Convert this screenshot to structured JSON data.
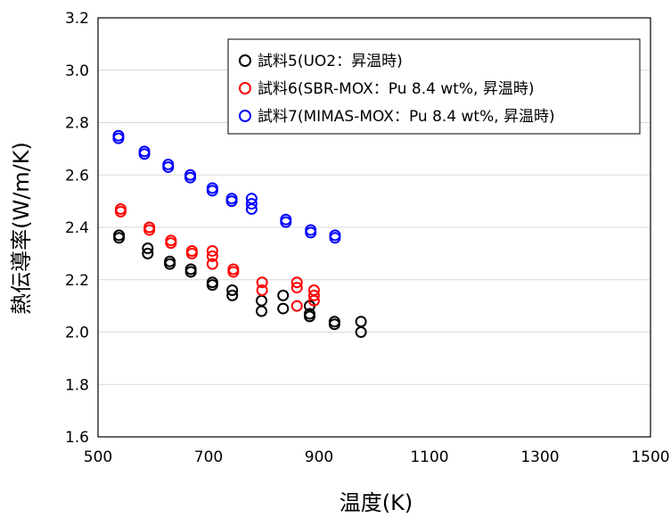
{
  "chart_data": {
    "type": "scatter",
    "xlabel": "温度(K)",
    "ylabel": "熱伝導率(W/m/K)",
    "xlim": [
      500,
      1500
    ],
    "ylim": [
      1.6,
      3.2
    ],
    "xticks": [
      "500",
      "700",
      "900",
      "1100",
      "1300",
      "1500"
    ],
    "yticks": [
      "1.6",
      "1.8",
      "2.0",
      "2.2",
      "2.4",
      "2.6",
      "2.8",
      "3.0",
      "3.2"
    ],
    "grid": "horizontal",
    "legend_position": "top-right",
    "series": [
      {
        "name": "試料5(UO2：昇温時)",
        "color": "#000000",
        "points": [
          [
            538,
            2.37
          ],
          [
            538,
            2.36
          ],
          [
            590,
            2.32
          ],
          [
            590,
            2.3
          ],
          [
            630,
            2.27
          ],
          [
            630,
            2.26
          ],
          [
            668,
            2.24
          ],
          [
            668,
            2.23
          ],
          [
            707,
            2.19
          ],
          [
            707,
            2.18
          ],
          [
            743,
            2.16
          ],
          [
            743,
            2.14
          ],
          [
            796,
            2.12
          ],
          [
            796,
            2.08
          ],
          [
            835,
            2.14
          ],
          [
            835,
            2.09
          ],
          [
            883,
            2.1
          ],
          [
            883,
            2.07
          ],
          [
            883,
            2.06
          ],
          [
            928,
            2.04
          ],
          [
            928,
            2.03
          ],
          [
            976,
            2.04
          ],
          [
            976,
            2.0
          ]
        ]
      },
      {
        "name": "試料6(SBR-MOX：Pu 8.4 wt%, 昇温時)",
        "color": "#ff0000",
        "points": [
          [
            541,
            2.47
          ],
          [
            541,
            2.46
          ],
          [
            593,
            2.4
          ],
          [
            593,
            2.39
          ],
          [
            632,
            2.35
          ],
          [
            632,
            2.34
          ],
          [
            670,
            2.31
          ],
          [
            670,
            2.3
          ],
          [
            707,
            2.31
          ],
          [
            707,
            2.29
          ],
          [
            707,
            2.26
          ],
          [
            745,
            2.24
          ],
          [
            745,
            2.23
          ],
          [
            797,
            2.19
          ],
          [
            797,
            2.16
          ],
          [
            860,
            2.19
          ],
          [
            860,
            2.17
          ],
          [
            860,
            2.1
          ],
          [
            891,
            2.16
          ],
          [
            891,
            2.14
          ],
          [
            891,
            2.12
          ]
        ]
      },
      {
        "name": "試料7(MIMAS-MOX：Pu 8.4 wt%, 昇温時)",
        "color": "#0000ff",
        "points": [
          [
            537,
            2.75
          ],
          [
            537,
            2.74
          ],
          [
            584,
            2.69
          ],
          [
            584,
            2.68
          ],
          [
            627,
            2.64
          ],
          [
            627,
            2.63
          ],
          [
            667,
            2.6
          ],
          [
            667,
            2.59
          ],
          [
            707,
            2.55
          ],
          [
            707,
            2.54
          ],
          [
            742,
            2.51
          ],
          [
            742,
            2.5
          ],
          [
            778,
            2.51
          ],
          [
            778,
            2.49
          ],
          [
            778,
            2.47
          ],
          [
            840,
            2.43
          ],
          [
            840,
            2.42
          ],
          [
            885,
            2.39
          ],
          [
            885,
            2.38
          ],
          [
            929,
            2.37
          ],
          [
            929,
            2.36
          ]
        ]
      }
    ]
  }
}
